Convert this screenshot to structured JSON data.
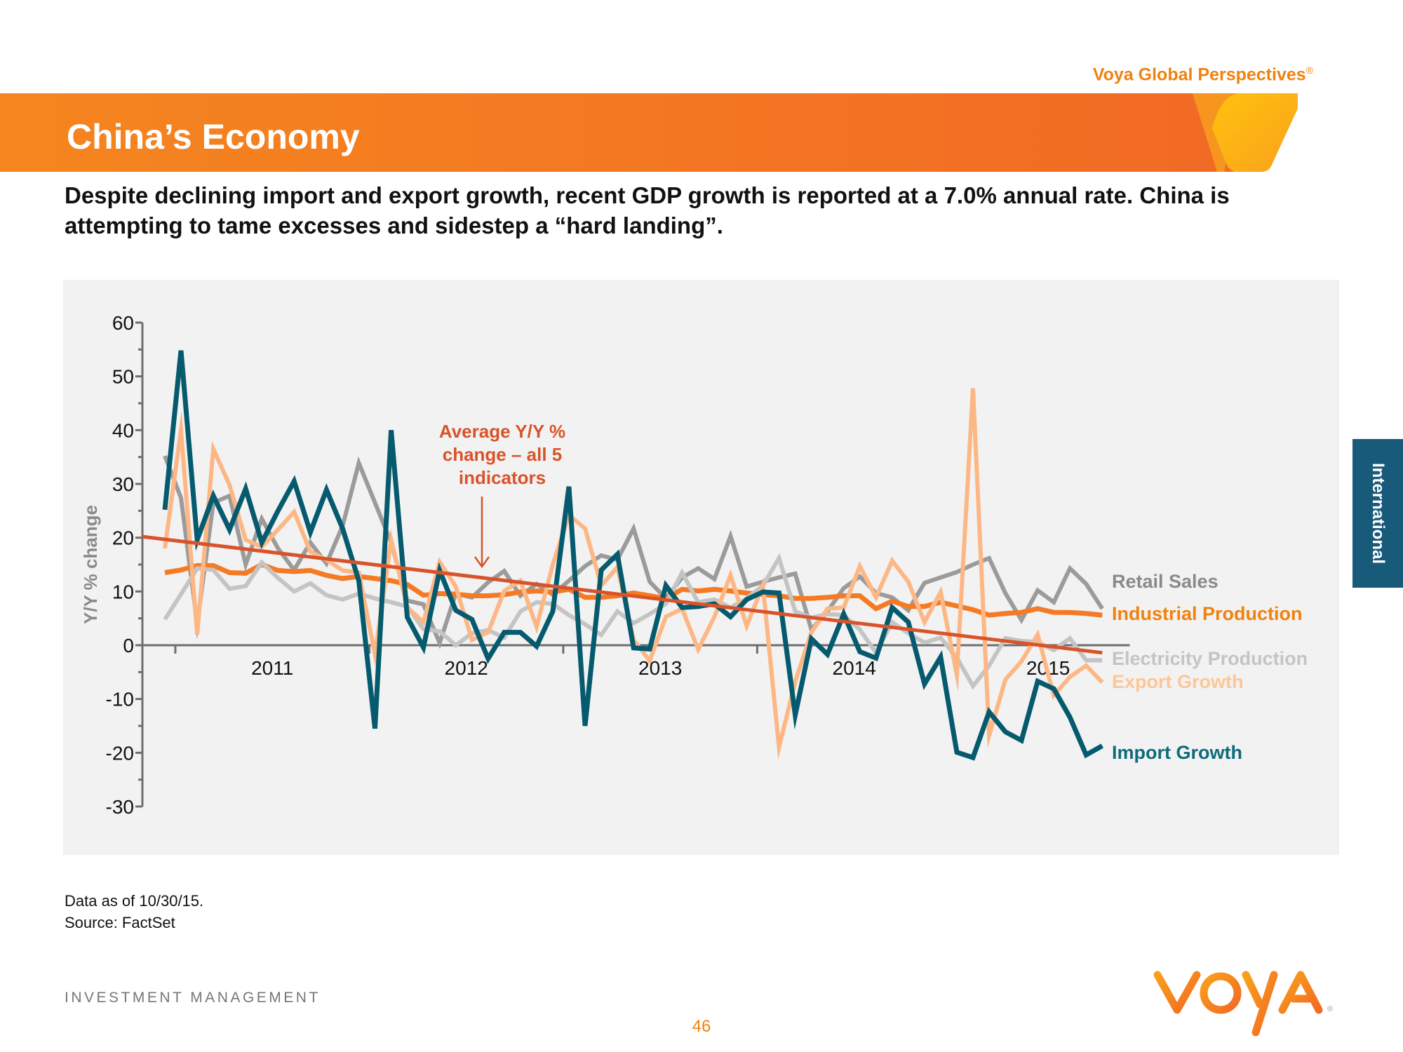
{
  "header": {
    "brand": "Voya Global Perspectives",
    "brand_mark": "®",
    "title": "China’s Economy",
    "subtitle": "Despite declining import and export growth, recent GDP growth is reported at a 7.0% annual rate. China is attempting to tame excesses and sidestep a “hard landing”."
  },
  "side_tab": {
    "label": "International",
    "color": "#175A7A"
  },
  "footer": {
    "note_line1": "Data as of 10/30/15.",
    "note_line2": "Source: FactSet",
    "division": "INVESTMENT MANAGEMENT",
    "page_number": "46",
    "logo_text": "VOYA",
    "logo_mark": "®"
  },
  "colors": {
    "brand_orange": "#F0820F",
    "header_start": "#F5861F",
    "header_end": "#F26A24",
    "panel_bg": "#F2F2F2",
    "axis": "#6E6E6E"
  },
  "chart_data": {
    "type": "line",
    "title": "",
    "xlabel": "",
    "ylabel": "Y/Y % change",
    "ylim": [
      -30,
      60
    ],
    "yticks": [
      60,
      50,
      40,
      30,
      20,
      10,
      0,
      -10,
      -20,
      -30
    ],
    "x_unit": "month index (0 = Dec 2010, monthly)",
    "x_range": [
      -1.4,
      59.7
    ],
    "year_ticks": [
      0.65,
      12.65,
      24.65,
      36.65,
      48.65
    ],
    "year_labels": [
      {
        "label": "2011",
        "x": 6.65
      },
      {
        "label": "2012",
        "x": 18.65
      },
      {
        "label": "2013",
        "x": 30.65
      },
      {
        "label": "2014",
        "x": 42.65
      },
      {
        "label": "2015",
        "x": 54.65
      }
    ],
    "grid": false,
    "legend_placement": "right (labels at line ends)",
    "series": [
      {
        "name": "Retail Sales",
        "color": "#9B9B9B",
        "label_color": "#8A8A8A",
        "values": [
          35.2,
          27.4,
          4,
          26.5,
          27.8,
          15,
          23.5,
          18,
          14,
          19.1,
          15.2,
          22.2,
          33.9,
          26.5,
          19.1,
          8.3,
          7.6,
          0.4,
          9.6,
          8.9,
          11.7,
          13.8,
          9.2,
          11.4,
          9.4,
          12,
          14.7,
          16.7,
          15.9,
          21.7,
          11.8,
          8.7,
          12.6,
          14.3,
          12.3,
          20.3,
          10.9,
          11.8,
          12.6,
          13.3,
          2.9,
          6.3,
          10.6,
          12.8,
          9.7,
          8.9,
          6.5,
          11.6,
          12.6,
          13.6,
          15,
          16.2,
          9.7,
          4.7,
          10.2,
          8,
          14.3,
          11.4,
          6.8
        ]
      },
      {
        "name": "Industrial Production",
        "color": "#F57A24",
        "label_color": "#F0820F",
        "values": [
          13.5,
          14,
          14.8,
          14.8,
          13.5,
          13.4,
          15,
          13.9,
          13.7,
          13.9,
          13,
          12.4,
          12.8,
          12.4,
          12,
          11.3,
          9.3,
          9.6,
          9.5,
          9.2,
          9.2,
          9.4,
          9.9,
          10.1,
          9.9,
          10.4,
          8.9,
          8.9,
          9.2,
          9.7,
          9.2,
          8.7,
          10.4,
          10.1,
          10.4,
          10.1,
          9.7,
          9.4,
          9.2,
          8.7,
          8.7,
          8.9,
          9.2,
          9.2,
          6.8,
          8.2,
          7.2,
          7.2,
          8,
          7.3,
          6.6,
          5.6,
          5.9,
          6.1,
          6.8,
          6.1,
          6.1,
          5.9,
          5.6
        ]
      },
      {
        "name": "Electricity Production",
        "color": "#C4C4C4",
        "label_color": "#C4C4C4",
        "values": [
          4.8,
          9.5,
          14.3,
          14,
          10.5,
          11,
          15.4,
          12.5,
          10,
          11.5,
          9.3,
          8.5,
          9.6,
          8.7,
          8,
          7.2,
          3,
          2.6,
          0,
          2.2,
          2.8,
          1.4,
          6.3,
          8,
          7.7,
          5.6,
          3.9,
          1.9,
          6.3,
          4.1,
          5.8,
          7.7,
          13.5,
          8,
          8.5,
          7,
          8.7,
          11.1,
          16.2,
          6.3,
          5.1,
          5.8,
          5.6,
          2.9,
          -1.4,
          4.3,
          2.2,
          0.5,
          1.4,
          -2.3,
          -7.6,
          -3.8,
          1.3,
          0.8,
          0.6,
          -0.9,
          1.3,
          -2.8,
          -2.8
        ]
      },
      {
        "name": "Export Growth",
        "color": "#FDB785",
        "label_color": "#FDC696",
        "values": [
          18,
          40,
          2,
          36.5,
          29.8,
          19.6,
          18.3,
          21.5,
          24.8,
          17.4,
          15.9,
          13.9,
          13.5,
          -1.7,
          19.6,
          7,
          4.3,
          15.5,
          10.9,
          1,
          2.4,
          10.1,
          12,
          3.4,
          15,
          24.2,
          21.7,
          11.1,
          14.5,
          1,
          -2.9,
          5.3,
          6.8,
          -0.8,
          5.3,
          13,
          3.6,
          11.1,
          -19,
          -6.8,
          2.4,
          6.8,
          7,
          14.7,
          8.9,
          15.7,
          11.8,
          4.3,
          9.9,
          -5.5,
          47.8,
          -16.8,
          -6.4,
          -3,
          2,
          -9.3,
          -5.9,
          -3.8,
          -6.9
        ]
      },
      {
        "name": "Import Growth",
        "color": "#065A6E",
        "label_color": "#0E6B7B",
        "values": [
          25.2,
          54.8,
          19.6,
          27.8,
          21.5,
          29.1,
          19.1,
          25,
          30.5,
          21,
          28.9,
          21.7,
          12,
          -15.5,
          40,
          5.2,
          -0.4,
          13.9,
          6.5,
          4.8,
          -2.5,
          2.4,
          2.4,
          -0.2,
          6.3,
          29.5,
          -15,
          14,
          16.9,
          -0.5,
          -0.7,
          11.1,
          7,
          7.2,
          7.7,
          5.3,
          8.5,
          9.9,
          9.7,
          -13,
          1.2,
          -1.7,
          5.8,
          -1.2,
          -2.4,
          7,
          4.3,
          -7.2,
          -2.2,
          -19.9,
          -20.9,
          -12.4,
          -16.1,
          -17.7,
          -6.7,
          -8.1,
          -13.4,
          -20.4,
          -18.7
        ]
      }
    ],
    "trend_line": {
      "name": "Average Y/Y % change – all 5 indicators",
      "color": "#D9532A",
      "start": {
        "x": -1.4,
        "y": 20.2
      },
      "end": {
        "x": 58,
        "y": -1.4
      }
    },
    "annotation": {
      "lines": [
        "Average Y/Y %",
        "change – all 5",
        "indicators"
      ],
      "color": "#D9532A",
      "arrow_x": 16.6,
      "arrow_from_y": 28,
      "arrow_to_y": 14
    }
  }
}
